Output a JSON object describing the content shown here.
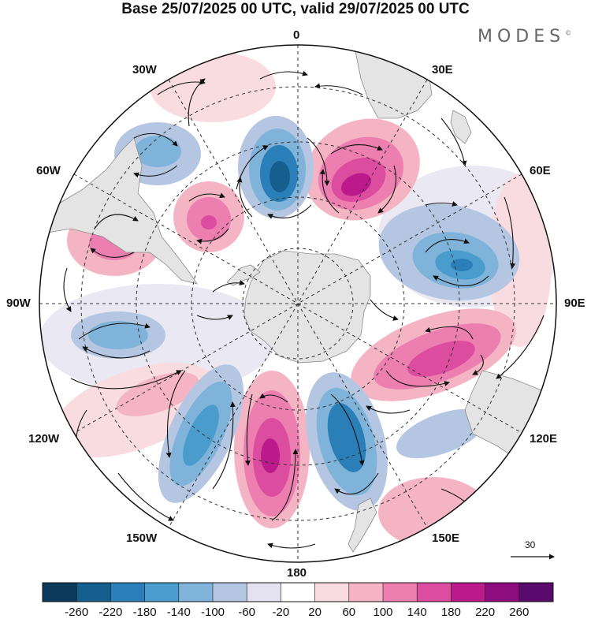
{
  "title": "Base 25/07/2025 00 UTC, valid 29/07/2025 00 UTC",
  "brand": "MODES",
  "brand_mark": "©",
  "longitude_labels": {
    "top": "0",
    "bottom": "180",
    "left": "90W",
    "right": "90E",
    "w30": "30W",
    "e30": "30E",
    "w60": "60W",
    "e60": "60E",
    "w120": "120W",
    "e120": "120E",
    "w150": "150W",
    "e150": "150E"
  },
  "reference_vector_label": "30",
  "colorbar": {
    "labels": [
      "-260",
      "-220",
      "-180",
      "-140",
      "-100",
      "-60",
      "-20",
      "20",
      "60",
      "100",
      "140",
      "180",
      "220",
      "260"
    ],
    "colors": [
      "#0c3a5a",
      "#155f8f",
      "#2b7fb8",
      "#4a9ccc",
      "#7fb3d9",
      "#b5c6e2",
      "#e4e2f0",
      "#ffffff",
      "#f9dce0",
      "#f4b4c4",
      "#ec7fb0",
      "#dc4da0",
      "#bc1a8c",
      "#8e0d7e",
      "#5a0a6c"
    ]
  },
  "colors": {
    "land": "#e4e4e4",
    "coast": "#8a8a8a",
    "grid": "#333333"
  }
}
